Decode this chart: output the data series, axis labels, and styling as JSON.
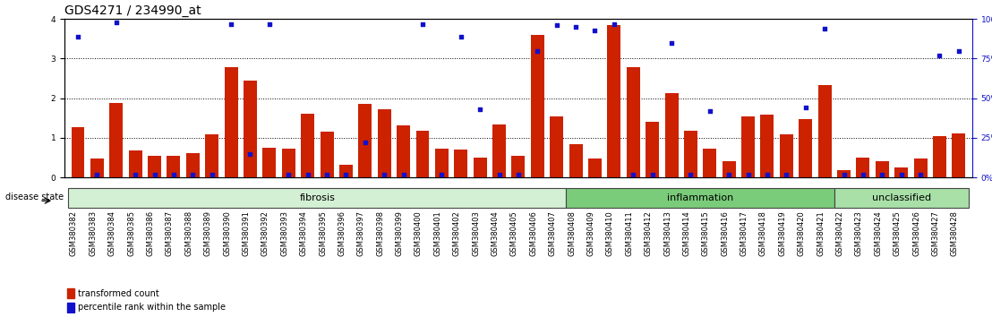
{
  "title": "GDS4271 / 234990_at",
  "samples": [
    "GSM380382",
    "GSM380383",
    "GSM380384",
    "GSM380385",
    "GSM380386",
    "GSM380387",
    "GSM380388",
    "GSM380389",
    "GSM380390",
    "GSM380391",
    "GSM380392",
    "GSM380393",
    "GSM380394",
    "GSM380395",
    "GSM380396",
    "GSM380397",
    "GSM380398",
    "GSM380399",
    "GSM380400",
    "GSM380401",
    "GSM380402",
    "GSM380403",
    "GSM380404",
    "GSM380405",
    "GSM380406",
    "GSM380407",
    "GSM380408",
    "GSM380409",
    "GSM380410",
    "GSM380411",
    "GSM380412",
    "GSM380413",
    "GSM380414",
    "GSM380415",
    "GSM380416",
    "GSM380417",
    "GSM380418",
    "GSM380419",
    "GSM380420",
    "GSM380421",
    "GSM380422",
    "GSM380423",
    "GSM380424",
    "GSM380425",
    "GSM380426",
    "GSM380427",
    "GSM380428"
  ],
  "bar_values": [
    1.28,
    0.48,
    1.88,
    0.68,
    0.55,
    0.55,
    0.62,
    1.1,
    2.78,
    2.45,
    0.75,
    0.72,
    1.6,
    1.15,
    0.32,
    1.85,
    1.72,
    1.32,
    1.18,
    0.72,
    0.7,
    0.5,
    1.35,
    0.55,
    3.6,
    1.55,
    0.85,
    0.48,
    3.85,
    2.78,
    1.4,
    2.12,
    1.18,
    0.72,
    0.42,
    1.55,
    1.58,
    1.1,
    1.48,
    2.33,
    0.18,
    0.5,
    0.42,
    0.25,
    0.48,
    1.05,
    1.12
  ],
  "dot_values_pct": [
    89,
    2,
    98,
    2,
    2,
    2,
    2,
    2,
    97,
    15,
    97,
    2,
    2,
    2,
    2,
    22,
    2,
    2,
    97,
    2,
    89,
    43,
    2,
    2,
    80,
    96,
    95,
    93,
    97,
    2,
    2,
    85,
    2,
    42,
    2,
    2,
    2,
    2,
    44,
    94,
    2,
    2,
    2,
    2,
    2,
    77,
    80
  ],
  "groups": [
    {
      "label": "fibrosis",
      "start": 0,
      "end": 26,
      "color": "#d4f0d4"
    },
    {
      "label": "inflammation",
      "start": 26,
      "end": 40,
      "color": "#7acc7a"
    },
    {
      "label": "unclassified",
      "start": 40,
      "end": 47,
      "color": "#a8e0a8"
    }
  ],
  "bar_color": "#cc2200",
  "dot_color": "#1111cc",
  "ylim_left": [
    0,
    4
  ],
  "ylim_right": [
    0,
    100
  ],
  "yticks_left": [
    0,
    1,
    2,
    3,
    4
  ],
  "yticks_right_vals": [
    0,
    25,
    50,
    75,
    100
  ],
  "yticks_right_labels": [
    "0%",
    "25%",
    "50%",
    "75%",
    "100%"
  ],
  "title_fontsize": 10,
  "tick_fontsize": 6.5,
  "label_fontsize": 8,
  "group_label_fontsize": 8
}
